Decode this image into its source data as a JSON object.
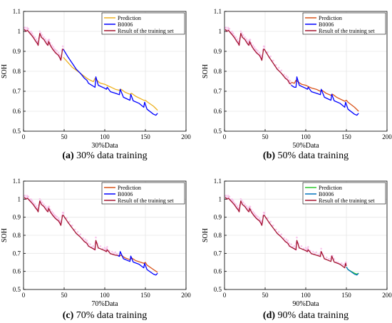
{
  "chart_data": [
    {
      "type": "line",
      "caption_letter": "(a)",
      "caption_text": " 30% data training",
      "xlabel": "30%Data",
      "ylabel": "SOH",
      "xlim": [
        0,
        200
      ],
      "ylim": [
        0.5,
        1.1
      ],
      "xticks": [
        "0",
        "50",
        "100",
        "150",
        "200"
      ],
      "yticks": [
        "0.5",
        "0.6",
        "0.7",
        "0.8",
        "0.9",
        "1",
        "1.1"
      ],
      "grid": true,
      "legend_position": "top-right",
      "series": [
        {
          "name": "Prediction",
          "color": "#EDB120",
          "x": [
            49,
            60,
            70,
            78,
            80,
            86,
            88,
            93,
            95,
            100,
            105,
            108,
            113,
            118,
            120,
            125,
            131,
            133,
            138,
            148,
            150,
            152,
            160,
            165
          ],
          "y": [
            0.87,
            0.82,
            0.79,
            0.765,
            0.76,
            0.748,
            0.765,
            0.745,
            0.74,
            0.735,
            0.725,
            0.72,
            0.71,
            0.705,
            0.71,
            0.695,
            0.685,
            0.69,
            0.675,
            0.655,
            0.655,
            0.648,
            0.625,
            0.605
          ]
        },
        {
          "name": "B0006",
          "color": "#0000FF",
          "x": [
            49,
            55,
            60,
            65,
            70,
            75,
            78,
            80,
            86,
            88,
            89,
            92,
            100,
            102,
            103,
            107,
            113,
            118,
            119,
            123,
            131,
            132,
            135,
            142,
            148,
            149,
            152,
            160,
            163,
            165
          ],
          "y": [
            0.91,
            0.87,
            0.84,
            0.81,
            0.79,
            0.765,
            0.755,
            0.74,
            0.725,
            0.72,
            0.772,
            0.73,
            0.715,
            0.71,
            0.72,
            0.698,
            0.69,
            0.683,
            0.71,
            0.67,
            0.655,
            0.685,
            0.652,
            0.64,
            0.62,
            0.645,
            0.61,
            0.585,
            0.58,
            0.59
          ]
        },
        {
          "name": "Result of the training set",
          "color": "#A2142F",
          "x": [
            1,
            3,
            5,
            8,
            10,
            12,
            15,
            17,
            18,
            20,
            22,
            25,
            28,
            30,
            31,
            33,
            36,
            38,
            40,
            43,
            45,
            46,
            48,
            49
          ],
          "y": [
            1.01,
            1.0,
            1.005,
            0.99,
            0.98,
            0.97,
            0.95,
            0.94,
            0.93,
            0.99,
            0.97,
            0.96,
            0.94,
            0.93,
            0.95,
            0.93,
            0.91,
            0.9,
            0.89,
            0.88,
            0.865,
            0.855,
            0.91,
            0.91
          ]
        }
      ]
    },
    {
      "type": "line",
      "caption_letter": "(b)",
      "caption_text": " 50% data training",
      "xlabel": "50%Data",
      "ylabel": "SOH",
      "xlim": [
        0,
        200
      ],
      "ylim": [
        0.5,
        1.1
      ],
      "xticks": [
        "0",
        "50",
        "100",
        "150",
        "200"
      ],
      "yticks": [
        "0.5",
        "0.6",
        "0.7",
        "0.8",
        "0.9",
        "1",
        "1.1"
      ],
      "grid": true,
      "legend_position": "top-right",
      "series": [
        {
          "name": "Prediction",
          "color": "#D95319",
          "x": [
            82,
            86,
            88,
            93,
            95,
            100,
            105,
            108,
            113,
            118,
            120,
            125,
            131,
            133,
            138,
            148,
            150,
            152,
            160,
            165
          ],
          "y": [
            0.745,
            0.74,
            0.755,
            0.74,
            0.735,
            0.73,
            0.72,
            0.715,
            0.71,
            0.7,
            0.705,
            0.69,
            0.68,
            0.685,
            0.67,
            0.65,
            0.655,
            0.645,
            0.62,
            0.6
          ]
        },
        {
          "name": "B0006",
          "color": "#0000FF",
          "x": [
            82,
            86,
            88,
            89,
            92,
            100,
            102,
            103,
            107,
            113,
            118,
            119,
            123,
            131,
            132,
            135,
            142,
            148,
            149,
            152,
            160,
            163,
            165
          ],
          "y": [
            0.73,
            0.72,
            0.72,
            0.772,
            0.73,
            0.715,
            0.71,
            0.72,
            0.698,
            0.69,
            0.683,
            0.71,
            0.67,
            0.655,
            0.685,
            0.652,
            0.64,
            0.62,
            0.645,
            0.61,
            0.585,
            0.58,
            0.59
          ]
        },
        {
          "name": "Result of the training set",
          "color": "#A2142F",
          "x": [
            1,
            3,
            5,
            8,
            10,
            12,
            15,
            17,
            18,
            20,
            22,
            25,
            28,
            30,
            31,
            33,
            36,
            38,
            40,
            43,
            45,
            46,
            48,
            49,
            55,
            60,
            65,
            70,
            75,
            78,
            80,
            82
          ],
          "y": [
            1.01,
            1.0,
            1.005,
            0.99,
            0.98,
            0.97,
            0.95,
            0.94,
            0.93,
            0.99,
            0.97,
            0.96,
            0.94,
            0.93,
            0.95,
            0.93,
            0.91,
            0.9,
            0.89,
            0.88,
            0.865,
            0.855,
            0.91,
            0.91,
            0.87,
            0.84,
            0.81,
            0.79,
            0.765,
            0.755,
            0.74,
            0.735
          ]
        }
      ]
    },
    {
      "type": "line",
      "caption_letter": "(c)",
      "caption_text": " 70% data training",
      "xlabel": "70%Data",
      "ylabel": "SOH",
      "xlim": [
        0,
        200
      ],
      "ylim": [
        0.5,
        1.1
      ],
      "xticks": [
        "0",
        "50",
        "100",
        "150",
        "200"
      ],
      "yticks": [
        "0.5",
        "0.6",
        "0.7",
        "0.8",
        "0.9",
        "1",
        "1.1"
      ],
      "grid": true,
      "legend_position": "top-right",
      "series": [
        {
          "name": "Prediction",
          "color": "#D95319",
          "x": [
            116,
            118,
            120,
            125,
            131,
            133,
            138,
            148,
            150,
            152,
            160,
            165
          ],
          "y": [
            0.69,
            0.685,
            0.69,
            0.675,
            0.665,
            0.675,
            0.66,
            0.645,
            0.65,
            0.635,
            0.61,
            0.595
          ]
        },
        {
          "name": "B0006",
          "color": "#0000FF",
          "x": [
            116,
            118,
            119,
            123,
            131,
            132,
            135,
            142,
            148,
            149,
            152,
            160,
            163,
            165
          ],
          "y": [
            0.688,
            0.683,
            0.71,
            0.67,
            0.655,
            0.685,
            0.652,
            0.64,
            0.62,
            0.645,
            0.61,
            0.585,
            0.58,
            0.59
          ]
        },
        {
          "name": "Result of the training set",
          "color": "#A2142F",
          "x": [
            1,
            3,
            5,
            8,
            10,
            12,
            15,
            17,
            18,
            20,
            22,
            25,
            28,
            30,
            31,
            33,
            36,
            38,
            40,
            43,
            45,
            46,
            48,
            49,
            55,
            60,
            65,
            70,
            75,
            78,
            80,
            86,
            88,
            89,
            92,
            100,
            102,
            103,
            107,
            113,
            116
          ],
          "y": [
            1.01,
            1.0,
            1.005,
            0.99,
            0.98,
            0.97,
            0.95,
            0.94,
            0.93,
            0.99,
            0.97,
            0.96,
            0.94,
            0.93,
            0.95,
            0.93,
            0.91,
            0.9,
            0.89,
            0.88,
            0.865,
            0.855,
            0.91,
            0.91,
            0.87,
            0.84,
            0.81,
            0.79,
            0.765,
            0.755,
            0.74,
            0.725,
            0.72,
            0.772,
            0.73,
            0.715,
            0.71,
            0.72,
            0.698,
            0.69,
            0.688
          ]
        }
      ]
    },
    {
      "type": "line",
      "caption_letter": "(d)",
      "caption_text": " 90% data training",
      "xlabel": "90%Data",
      "ylabel": "SOH",
      "xlim": [
        0,
        200
      ],
      "ylim": [
        0.5,
        1.1
      ],
      "xticks": [
        "0",
        "50",
        "100",
        "150",
        "200"
      ],
      "yticks": [
        "0.5",
        "0.6",
        "0.7",
        "0.8",
        "0.9",
        "1",
        "1.1"
      ],
      "grid": true,
      "legend_position": "top-right",
      "series": [
        {
          "name": "Prediction",
          "color": "#2CC72C",
          "x": [
            150,
            152,
            156,
            160,
            163,
            165
          ],
          "y": [
            0.625,
            0.61,
            0.6,
            0.59,
            0.585,
            0.59
          ]
        },
        {
          "name": "B0006",
          "color": "#0072BD",
          "x": [
            150,
            152,
            156,
            160,
            163,
            165
          ],
          "y": [
            0.625,
            0.61,
            0.598,
            0.585,
            0.58,
            0.59
          ]
        },
        {
          "name": "Result of the training set",
          "color": "#A2142F",
          "x": [
            1,
            3,
            5,
            8,
            10,
            12,
            15,
            17,
            18,
            20,
            22,
            25,
            28,
            30,
            31,
            33,
            36,
            38,
            40,
            43,
            45,
            46,
            48,
            49,
            55,
            60,
            65,
            70,
            75,
            78,
            80,
            86,
            88,
            89,
            92,
            100,
            102,
            103,
            107,
            113,
            118,
            119,
            123,
            131,
            132,
            135,
            142,
            148,
            149,
            150
          ],
          "y": [
            1.01,
            1.0,
            1.005,
            0.99,
            0.98,
            0.97,
            0.95,
            0.94,
            0.93,
            0.99,
            0.97,
            0.96,
            0.94,
            0.93,
            0.95,
            0.93,
            0.91,
            0.9,
            0.89,
            0.88,
            0.865,
            0.855,
            0.91,
            0.91,
            0.87,
            0.84,
            0.81,
            0.79,
            0.765,
            0.755,
            0.74,
            0.725,
            0.72,
            0.772,
            0.73,
            0.715,
            0.71,
            0.72,
            0.698,
            0.69,
            0.683,
            0.71,
            0.67,
            0.655,
            0.685,
            0.652,
            0.64,
            0.62,
            0.645,
            0.63
          ]
        }
      ]
    }
  ]
}
